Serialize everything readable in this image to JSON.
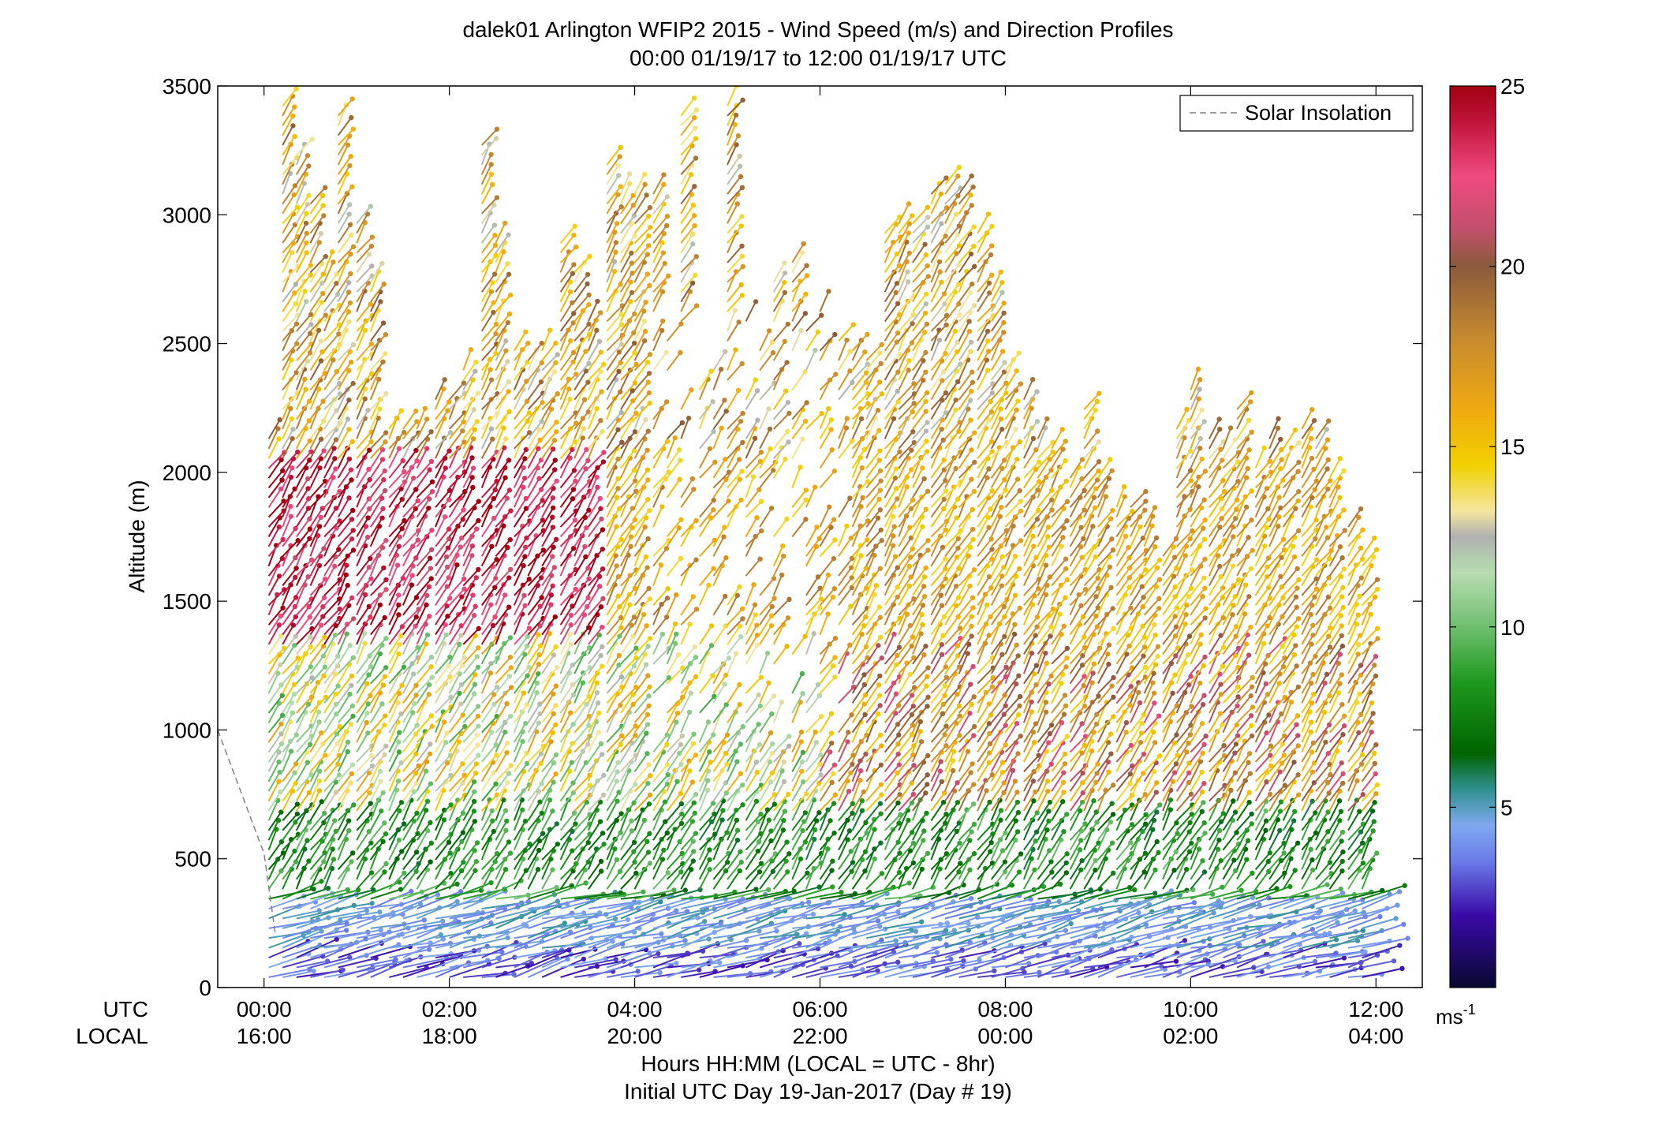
{
  "chart_data": {
    "type": "scatter",
    "title_line1": "dalek01 Arlington WFIP2 2015 - Wind Speed (m/s) and Direction Profiles",
    "title_line2": "00:00 01/19/17 to 12:00 01/19/17  UTC",
    "ylabel": "Altitude (m)",
    "xlabel_line1": "Hours HH:MM  (LOCAL = UTC - 8hr)",
    "xlabel_line2": "Initial UTC Day 19-Jan-2017 (Day # 19)",
    "utc_label": "UTC",
    "local_label": "LOCAL",
    "xlim_hours": [
      -0.5,
      12.5
    ],
    "ylim": [
      0,
      3500
    ],
    "grid": false,
    "y_ticks": [
      "0",
      "500",
      "1000",
      "1500",
      "2000",
      "2500",
      "3000",
      "3500"
    ],
    "y_tick_values": [
      0,
      500,
      1000,
      1500,
      2000,
      2500,
      3000,
      3500
    ],
    "x_tick_hours": [
      0,
      2,
      4,
      6,
      8,
      10,
      12
    ],
    "x_ticks_utc": [
      "00:00",
      "02:00",
      "04:00",
      "06:00",
      "08:00",
      "10:00",
      "12:00"
    ],
    "x_ticks_local": [
      "16:00",
      "18:00",
      "20:00",
      "22:00",
      "00:00",
      "02:00",
      "04:00"
    ],
    "legend": {
      "label": "Solar Insolation",
      "position": "top-right",
      "line_color": "#808080",
      "line_style": "dashed"
    },
    "solar_insolation": {
      "hours": [
        -0.5,
        0.0,
        0.125
      ],
      "altitude_equiv": [
        1000,
        520,
        200
      ]
    },
    "colorbar": {
      "label": "ms",
      "label_superscript": "-1",
      "range": [
        0,
        25
      ],
      "ticks": [
        "5",
        "10",
        "15",
        "20",
        "25"
      ],
      "tick_values": [
        5,
        10,
        15,
        20,
        25
      ],
      "stops": [
        {
          "v": 0,
          "c": "#080830"
        },
        {
          "v": 2,
          "c": "#3a0aa8"
        },
        {
          "v": 3.5,
          "c": "#6a7be8"
        },
        {
          "v": 4.5,
          "c": "#7fa8f0"
        },
        {
          "v": 5.5,
          "c": "#2f8f8f"
        },
        {
          "v": 6.5,
          "c": "#006400"
        },
        {
          "v": 8.5,
          "c": "#1f9a1f"
        },
        {
          "v": 10,
          "c": "#6fbf6f"
        },
        {
          "v": 11.5,
          "c": "#b7ddb0"
        },
        {
          "v": 12.5,
          "c": "#b0b0b0"
        },
        {
          "v": 13.2,
          "c": "#f4e6a0"
        },
        {
          "v": 14.5,
          "c": "#f2d000"
        },
        {
          "v": 16,
          "c": "#f0aa10"
        },
        {
          "v": 18,
          "c": "#c78a30"
        },
        {
          "v": 20,
          "c": "#8a5a3a"
        },
        {
          "v": 21,
          "c": "#c0506a"
        },
        {
          "v": 22.5,
          "c": "#f04a80"
        },
        {
          "v": 24,
          "c": "#c0143a"
        },
        {
          "v": 25,
          "c": "#a00010"
        }
      ]
    },
    "barb_columns_hours": [
      0.05,
      0.2,
      0.35,
      0.5,
      0.65,
      0.8,
      1.0,
      1.15,
      1.35,
      1.5,
      1.65,
      1.85,
      2.0,
      2.15,
      2.35,
      2.5,
      2.7,
      2.85,
      3.0,
      3.2,
      3.35,
      3.5,
      3.7,
      3.85,
      4.0,
      4.2,
      4.35,
      4.5,
      4.7,
      4.85,
      5.0,
      5.2,
      5.35,
      5.5,
      5.7,
      5.85,
      6.0,
      6.2,
      6.35,
      6.5,
      6.7,
      6.85,
      7.0,
      7.2,
      7.35,
      7.5,
      7.7,
      7.85,
      8.0,
      8.2,
      8.35,
      8.5,
      8.7,
      8.85,
      9.0,
      9.2,
      9.35,
      9.5,
      9.7,
      9.85,
      10.0,
      10.2,
      10.35,
      10.5,
      10.7,
      10.85,
      11.0,
      11.2,
      11.35,
      11.5,
      11.7,
      11.85
    ],
    "barb_column_tops_m": [
      2150,
      3450,
      3250,
      3050,
      2800,
      3400,
      3000,
      2750,
      2200,
      2200,
      2200,
      2300,
      2300,
      2400,
      3300,
      2900,
      2500,
      2450,
      2500,
      2900,
      2800,
      2600,
      3200,
      3100,
      3100,
      3100,
      2600,
      3400,
      2400,
      2500,
      3450,
      2600,
      2550,
      2750,
      2850,
      2600,
      2650,
      2550,
      2500,
      2450,
      2950,
      3000,
      3000,
      3100,
      3150,
      3100,
      2950,
      2700,
      2400,
      2300,
      2150,
      2100,
      2000,
      2250,
      2000,
      1900,
      1900,
      1800,
      1700,
      2200,
      2350,
      2150,
      2100,
      2250,
      2050,
      2150,
      2100,
      2200,
      2150,
      2000,
      1800,
      1700
    ],
    "wind_profile_rows": [
      {
        "layer_top_m": 350,
        "speed_ms": 4.5,
        "note": "near-surface light winds (blue/purple)"
      },
      {
        "layer_top_m": 700,
        "speed_ms": 8.0,
        "note": "green band"
      },
      {
        "layer_top_m": 1300,
        "speed_ms": 16.0,
        "note": "orange/brown band"
      },
      {
        "layer_top_m": 2000,
        "speed_ms": 22.0,
        "note": "pink/red band early hours"
      },
      {
        "layer_top_m": 3500,
        "speed_ms": 15.0,
        "note": "upper yellow/brown band"
      }
    ]
  }
}
